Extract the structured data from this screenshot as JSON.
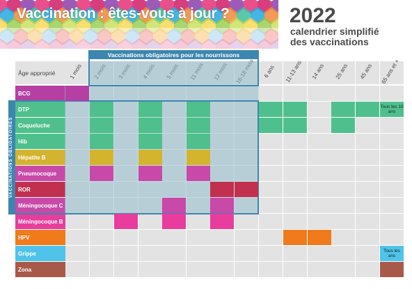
{
  "header": {
    "title": "Vaccination : êtes-vous à jour ?",
    "year": "2022",
    "subtitle_line1": "calendrier simplifié",
    "subtitle_line2": "des vaccinations"
  },
  "table": {
    "age_header": "Âge approprié",
    "mandatory_infants_title": "Vaccinations obligatoires pour les nourrissons",
    "mandatory_side_label": "VACCINATIONS OBLIGATOIRES",
    "columns": [
      "1 mois",
      "2 mois",
      "3 mois",
      "4 mois",
      "5 mois",
      "11 mois",
      "12 mois",
      "16-18 mois",
      "6 ans",
      "11-13 ans",
      "14 ans",
      "25 ans",
      "45 ans",
      "65 ans et +"
    ],
    "rows": [
      {
        "name": "BCG",
        "color": "#b63fa3",
        "marks": [
          0
        ]
      },
      {
        "name": "DTP",
        "color": "#4fc08d",
        "marks": [
          1,
          3,
          5,
          8,
          9,
          11,
          12
        ],
        "note_col": 13,
        "note": "Tous les 10 ans"
      },
      {
        "name": "Coqueluche",
        "color": "#4fc08d",
        "marks": [
          1,
          3,
          5,
          8,
          9,
          11
        ]
      },
      {
        "name": "Hib",
        "color": "#4fc08d",
        "marks": [
          1,
          3,
          5
        ]
      },
      {
        "name": "Hépatite B",
        "color": "#d4b32e",
        "marks": [
          1,
          3,
          5
        ]
      },
      {
        "name": "Pneumocoque",
        "color": "#c849a8",
        "marks": [
          1,
          3,
          5
        ]
      },
      {
        "name": "ROR",
        "color": "#c2304f",
        "marks": [
          6,
          7
        ]
      },
      {
        "name": "Méningocoque C",
        "color": "#c849a8",
        "marks": [
          4,
          6
        ]
      },
      {
        "name": "Méningocoque B",
        "color": "#e83d9d",
        "marks": [
          2,
          4,
          6
        ]
      },
      {
        "name": "HPV",
        "color": "#f07a1c",
        "marks": [
          9,
          10
        ]
      },
      {
        "name": "Grippe",
        "color": "#4fc3ea",
        "marks": [],
        "note_col": 13,
        "note": "Tous les ans"
      },
      {
        "name": "Zona",
        "color": "#a85a4a",
        "marks": [
          13
        ]
      }
    ]
  },
  "colors": {
    "mandatory_blue": "#3d86b0",
    "cell_grey": "#e3e3e3"
  }
}
